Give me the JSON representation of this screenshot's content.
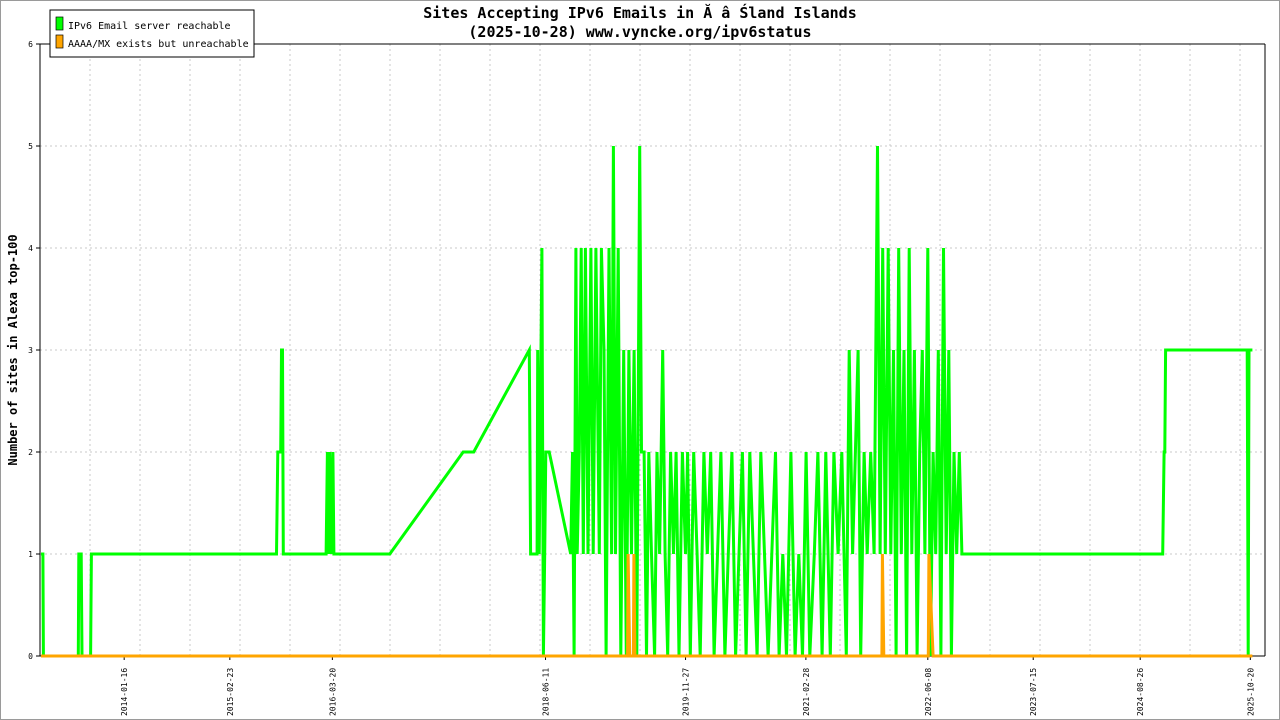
{
  "chart_data": {
    "type": "line",
    "title": "Sites Accepting IPv6 Emails in Ă â Śland Islands",
    "subtitle": "(2025-10-28) www.vyncke.org/ipv6status",
    "xlabel": "",
    "ylabel": "Number of sites in Alexa top-100",
    "x_ticks": [
      "2014-01-16",
      "2015-02-23",
      "2016-03-20",
      "2018-06-11",
      "2019-11-27",
      "2021-02-28",
      "2022-06-08",
      "2023-07-15",
      "2024-08-26",
      "2025-10-20"
    ],
    "x_range": [
      "2013-03-01",
      "2025-12-15"
    ],
    "y_ticks": [
      "0",
      "1",
      "2",
      "3",
      "4",
      "5",
      "6"
    ],
    "ylim": [
      0,
      6
    ],
    "grid": true,
    "legend_position": "top-left",
    "colors": {
      "reachable": "#00ff00",
      "unreachable": "#ffa500"
    },
    "series": [
      {
        "name": "IPv6 Email server reachable",
        "color": "#00ff00",
        "points": [
          [
            "2013-03-05",
            1
          ],
          [
            "2013-03-12",
            1
          ],
          [
            "2013-03-14",
            0
          ],
          [
            "2013-07-25",
            0
          ],
          [
            "2013-07-27",
            1
          ],
          [
            "2013-08-05",
            1
          ],
          [
            "2013-08-08",
            0
          ],
          [
            "2013-09-10",
            0
          ],
          [
            "2013-09-13",
            1
          ],
          [
            "2015-08-20",
            1
          ],
          [
            "2015-08-25",
            2
          ],
          [
            "2015-09-05",
            2
          ],
          [
            "2015-09-08",
            3
          ],
          [
            "2015-09-12",
            3
          ],
          [
            "2015-09-15",
            1
          ],
          [
            "2016-02-25",
            1
          ],
          [
            "2016-03-01",
            2
          ],
          [
            "2016-03-05",
            1
          ],
          [
            "2016-03-10",
            2
          ],
          [
            "2016-03-15",
            1
          ],
          [
            "2016-03-22",
            2
          ],
          [
            "2016-03-26",
            1
          ],
          [
            "2016-10-25",
            1
          ],
          [
            "2017-08-01",
            2
          ],
          [
            "2017-09-10",
            2
          ],
          [
            "2018-04-10",
            3
          ],
          [
            "2018-04-15",
            1
          ],
          [
            "2018-05-10",
            1
          ],
          [
            "2018-05-12",
            3
          ],
          [
            "2018-05-18",
            1
          ],
          [
            "2018-05-28",
            4
          ],
          [
            "2018-06-03",
            0
          ],
          [
            "2018-06-08",
            1
          ],
          [
            "2018-06-12",
            2
          ],
          [
            "2018-06-25",
            2
          ],
          [
            "2018-09-15",
            1
          ],
          [
            "2018-09-22",
            2
          ],
          [
            "2018-09-28",
            0
          ],
          [
            "2018-10-05",
            4
          ],
          [
            "2018-10-10",
            1
          ],
          [
            "2018-10-18",
            2
          ],
          [
            "2018-10-25",
            4
          ],
          [
            "2018-11-02",
            1
          ],
          [
            "2018-11-10",
            4
          ],
          [
            "2018-11-20",
            1
          ],
          [
            "2018-12-01",
            4
          ],
          [
            "2018-12-10",
            1
          ],
          [
            "2018-12-20",
            4
          ],
          [
            "2019-01-02",
            1
          ],
          [
            "2019-01-10",
            4
          ],
          [
            "2019-01-20",
            3
          ],
          [
            "2019-01-28",
            0
          ],
          [
            "2019-02-08",
            4
          ],
          [
            "2019-02-18",
            1
          ],
          [
            "2019-02-25",
            5
          ],
          [
            "2019-03-05",
            1
          ],
          [
            "2019-03-15",
            4
          ],
          [
            "2019-03-25",
            0
          ],
          [
            "2019-04-05",
            3
          ],
          [
            "2019-04-15",
            0
          ],
          [
            "2019-04-25",
            3
          ],
          [
            "2019-05-05",
            1
          ],
          [
            "2019-05-15",
            3
          ],
          [
            "2019-05-25",
            0
          ],
          [
            "2019-06-05",
            5
          ],
          [
            "2019-06-12",
            2
          ],
          [
            "2019-06-22",
            2
          ],
          [
            "2019-07-01",
            0
          ],
          [
            "2019-07-10",
            2
          ],
          [
            "2019-07-20",
            1
          ],
          [
            "2019-08-01",
            0
          ],
          [
            "2019-08-10",
            2
          ],
          [
            "2019-08-20",
            1
          ],
          [
            "2019-09-01",
            3
          ],
          [
            "2019-09-10",
            1
          ],
          [
            "2019-09-20",
            0
          ],
          [
            "2019-10-01",
            2
          ],
          [
            "2019-10-12",
            1
          ],
          [
            "2019-10-22",
            2
          ],
          [
            "2019-11-02",
            0
          ],
          [
            "2019-11-15",
            2
          ],
          [
            "2019-11-27",
            1
          ],
          [
            "2019-12-05",
            2
          ],
          [
            "2019-12-15",
            0
          ],
          [
            "2019-12-28",
            2
          ],
          [
            "2020-01-10",
            1
          ],
          [
            "2020-01-22",
            0
          ],
          [
            "2020-02-05",
            2
          ],
          [
            "2020-02-18",
            1
          ],
          [
            "2020-03-02",
            2
          ],
          [
            "2020-03-15",
            0
          ],
          [
            "2020-03-28",
            1
          ],
          [
            "2020-04-10",
            2
          ],
          [
            "2020-04-25",
            0
          ],
          [
            "2020-05-08",
            1
          ],
          [
            "2020-05-22",
            2
          ],
          [
            "2020-06-05",
            0
          ],
          [
            "2020-06-18",
            1
          ],
          [
            "2020-07-01",
            2
          ],
          [
            "2020-07-15",
            0
          ],
          [
            "2020-07-29",
            2
          ],
          [
            "2020-08-12",
            1
          ],
          [
            "2020-08-26",
            0
          ],
          [
            "2020-09-09",
            2
          ],
          [
            "2020-09-23",
            1
          ],
          [
            "2020-10-07",
            0
          ],
          [
            "2020-10-21",
            1
          ],
          [
            "2020-11-04",
            2
          ],
          [
            "2020-11-18",
            0
          ],
          [
            "2020-12-02",
            1
          ],
          [
            "2020-12-16",
            0
          ],
          [
            "2021-01-02",
            2
          ],
          [
            "2021-01-18",
            0
          ],
          [
            "2021-02-01",
            1
          ],
          [
            "2021-02-15",
            0
          ],
          [
            "2021-03-01",
            2
          ],
          [
            "2021-03-15",
            0
          ],
          [
            "2021-04-01",
            1
          ],
          [
            "2021-04-15",
            2
          ],
          [
            "2021-05-01",
            0
          ],
          [
            "2021-05-15",
            2
          ],
          [
            "2021-06-01",
            0
          ],
          [
            "2021-06-15",
            2
          ],
          [
            "2021-07-01",
            1
          ],
          [
            "2021-07-15",
            2
          ],
          [
            "2021-08-01",
            0
          ],
          [
            "2021-08-12",
            3
          ],
          [
            "2021-08-25",
            1
          ],
          [
            "2021-09-05",
            2
          ],
          [
            "2021-09-15",
            3
          ],
          [
            "2021-09-25",
            0
          ],
          [
            "2021-10-08",
            2
          ],
          [
            "2021-10-20",
            1
          ],
          [
            "2021-11-02",
            2
          ],
          [
            "2021-11-15",
            1
          ],
          [
            "2021-11-28",
            5
          ],
          [
            "2021-12-08",
            1
          ],
          [
            "2021-12-18",
            4
          ],
          [
            "2021-12-28",
            1
          ],
          [
            "2022-01-08",
            4
          ],
          [
            "2022-01-18",
            1
          ],
          [
            "2022-01-28",
            3
          ],
          [
            "2022-02-07",
            0
          ],
          [
            "2022-02-17",
            4
          ],
          [
            "2022-02-27",
            1
          ],
          [
            "2022-03-09",
            3
          ],
          [
            "2022-03-19",
            0
          ],
          [
            "2022-03-29",
            4
          ],
          [
            "2022-04-08",
            1
          ],
          [
            "2022-04-18",
            3
          ],
          [
            "2022-04-28",
            0
          ],
          [
            "2022-05-08",
            2
          ],
          [
            "2022-05-18",
            3
          ],
          [
            "2022-05-28",
            1
          ],
          [
            "2022-06-08",
            4
          ],
          [
            "2022-06-18",
            0
          ],
          [
            "2022-06-28",
            2
          ],
          [
            "2022-07-08",
            1
          ],
          [
            "2022-07-18",
            3
          ],
          [
            "2022-07-28",
            0
          ],
          [
            "2022-08-07",
            4
          ],
          [
            "2022-08-17",
            1
          ],
          [
            "2022-08-27",
            3
          ],
          [
            "2022-09-06",
            0
          ],
          [
            "2022-09-16",
            2
          ],
          [
            "2022-09-26",
            1
          ],
          [
            "2022-10-06",
            2
          ],
          [
            "2022-10-16",
            1
          ],
          [
            "2024-11-20",
            1
          ],
          [
            "2024-11-25",
            2
          ],
          [
            "2024-11-28",
            2
          ],
          [
            "2024-12-01",
            3
          ],
          [
            "2025-10-08",
            3
          ],
          [
            "2025-10-12",
            0
          ],
          [
            "2025-10-15",
            3
          ],
          [
            "2025-10-28",
            3
          ]
        ]
      },
      {
        "name": "AAAA/MX exists but unreachable",
        "color": "#ffa500",
        "points": [
          [
            "2013-03-05",
            0
          ],
          [
            "2019-04-20",
            0
          ],
          [
            "2019-04-22",
            1
          ],
          [
            "2019-04-28",
            0
          ],
          [
            "2019-05-12",
            0
          ],
          [
            "2019-05-14",
            1
          ],
          [
            "2019-05-18",
            0
          ],
          [
            "2021-12-15",
            0
          ],
          [
            "2021-12-17",
            1
          ],
          [
            "2021-12-22",
            0
          ],
          [
            "2022-06-10",
            0
          ],
          [
            "2022-06-12",
            1
          ],
          [
            "2022-06-20",
            0.5
          ],
          [
            "2022-06-28",
            0
          ],
          [
            "2025-10-28",
            0
          ]
        ]
      }
    ]
  }
}
